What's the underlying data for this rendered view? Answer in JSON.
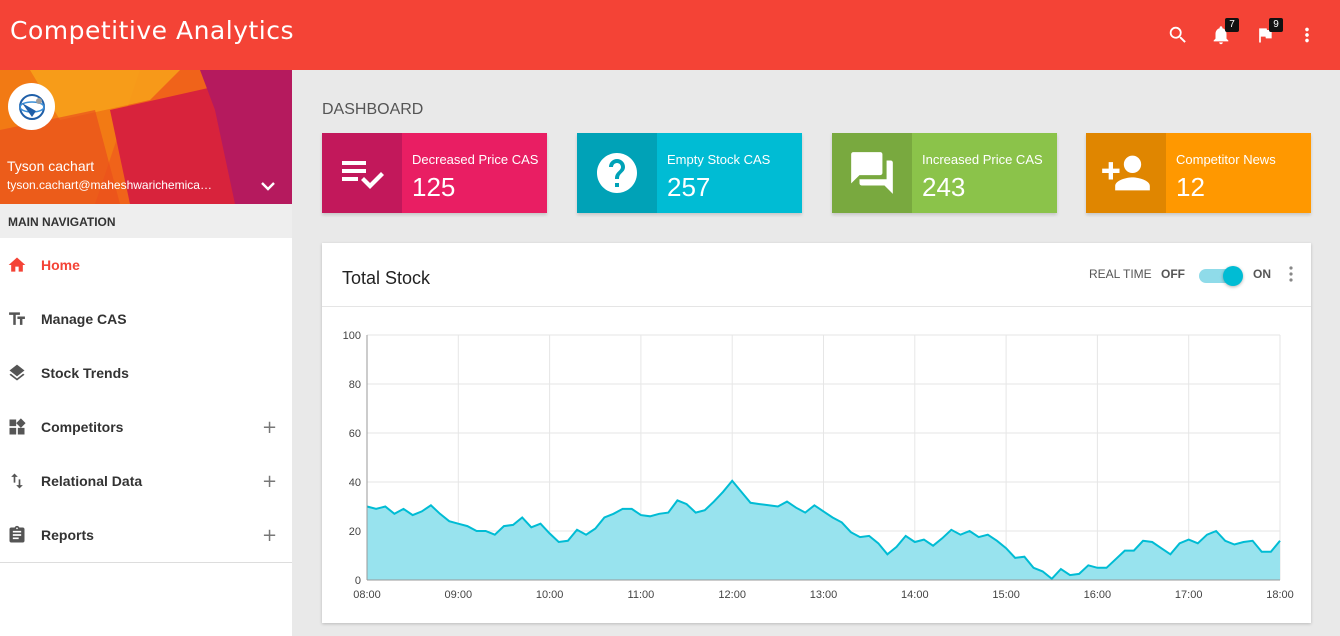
{
  "app": {
    "title": "Competitive Analytics"
  },
  "header": {
    "notifications_count": "7",
    "flags_count": "9",
    "icons": [
      "search-icon",
      "bell-icon",
      "flag-icon",
      "more-vert-icon"
    ]
  },
  "user": {
    "name": "Tyson cachart",
    "email": "tyson.cachart@maheshwarichemicals.com"
  },
  "nav": {
    "header": "MAIN NAVIGATION",
    "items": [
      {
        "label": "Home",
        "icon": "home-icon",
        "active": true,
        "expandable": false
      },
      {
        "label": "Manage CAS",
        "icon": "text-fields-icon",
        "active": false,
        "expandable": false
      },
      {
        "label": "Stock Trends",
        "icon": "layers-icon",
        "active": false,
        "expandable": false
      },
      {
        "label": "Competitors",
        "icon": "widgets-icon",
        "active": false,
        "expandable": true
      },
      {
        "label": "Relational Data",
        "icon": "swap-vert-icon",
        "active": false,
        "expandable": true
      },
      {
        "label": "Reports",
        "icon": "assignment-icon",
        "active": false,
        "expandable": true
      }
    ],
    "expand_symbol": "+"
  },
  "page": {
    "title": "DASHBOARD"
  },
  "info_boxes": [
    {
      "text": "Decreased Price CAS",
      "number": "125",
      "icon": "playlist-check-icon",
      "color": "#e91e63",
      "icon_bg": "#c2185b"
    },
    {
      "text": "Empty Stock CAS",
      "number": "257",
      "icon": "help-icon",
      "color": "#00bcd4",
      "icon_bg": "#00a2b7"
    },
    {
      "text": "Increased Price CAS",
      "number": "243",
      "icon": "forum-icon",
      "color": "#8bc34a",
      "icon_bg": "#79a93f"
    },
    {
      "text": "Competitor News",
      "number": "12",
      "icon": "person-add-icon",
      "color": "#ff9800",
      "icon_bg": "#e08600"
    }
  ],
  "card": {
    "title": "Total Stock",
    "realtime_label": "REAL TIME",
    "off_label": "OFF",
    "on_label": "ON",
    "realtime_on": true
  },
  "chart_data": {
    "type": "area",
    "title": "",
    "xlabel": "",
    "ylabel": "",
    "ylim": [
      0,
      100
    ],
    "yticks": [
      0,
      20,
      40,
      60,
      80,
      100
    ],
    "xlim": [
      "08:00",
      "18:00"
    ],
    "xticks": [
      "08:00",
      "09:00",
      "10:00",
      "11:00",
      "12:00",
      "13:00",
      "14:00",
      "15:00",
      "16:00",
      "17:00",
      "18:00"
    ],
    "grid": true,
    "color": "#00bcd4",
    "fill": "#98e3ee",
    "series": [
      {
        "values": [
          30,
          29,
          30,
          27,
          29,
          26.5,
          28,
          30.5,
          27,
          24,
          23,
          22,
          20,
          20,
          18.5,
          22,
          22.5,
          25.5,
          21.5,
          23,
          19,
          15.5,
          16,
          20.5,
          18.5,
          21,
          25.5,
          27,
          29,
          29,
          26.5,
          26,
          27,
          27.5,
          32.5,
          31,
          27.5,
          28.5,
          32,
          36,
          40.5,
          36,
          31.5,
          31,
          30.5,
          30,
          32,
          29.5,
          27.5,
          30.5,
          28,
          25.5,
          23.5,
          19.5,
          17.5,
          18,
          15,
          10.5,
          13.5,
          18,
          15.5,
          16.5,
          14,
          17,
          20.5,
          18.5,
          20,
          17.5,
          18.5,
          16,
          13,
          9,
          9.5,
          5,
          3.5,
          0.5,
          4.5,
          2,
          2.5,
          6,
          5,
          5,
          8.5,
          12,
          12,
          16,
          15.5,
          13,
          10.5,
          15,
          16.5,
          15,
          18.5,
          20,
          16,
          14.5,
          15.5,
          16,
          11.5,
          11.5,
          16
        ]
      }
    ]
  }
}
